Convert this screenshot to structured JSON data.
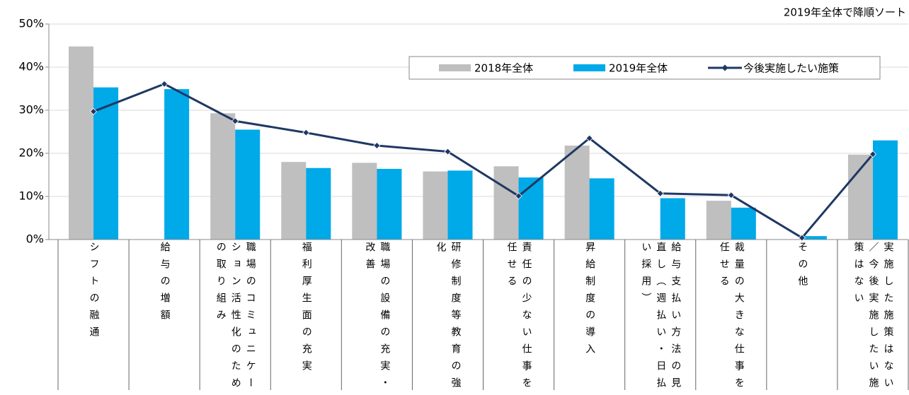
{
  "chart_data": {
    "type": "bar",
    "annotation": "2019年全体で降順ソート",
    "categories": [
      "シフトの融通",
      "給与の増額",
      "職場のコミュニケーション活性化のための取り組み",
      "福利厚生面の充実",
      "職場の設備の充実・改善",
      "研修制度等教育の強化",
      "責任の少ない仕事を任せる",
      "昇給制度の導入",
      "給与支払い方法の見直し（週払い・日払い採用）",
      "裁量の大きな仕事を任せる",
      "その他",
      "実施した施策はない／今後実施したい施策はない"
    ],
    "series": [
      {
        "name": "2018年全体",
        "type": "bar",
        "color": "#bfbfbf",
        "values": [
          44.8,
          null,
          29.3,
          18.0,
          17.8,
          15.8,
          17.0,
          21.8,
          null,
          9.0,
          null,
          19.7
        ]
      },
      {
        "name": "2019年全体",
        "type": "bar",
        "color": "#00a9e8",
        "values": [
          35.3,
          34.9,
          25.5,
          16.6,
          16.4,
          16.0,
          14.4,
          14.2,
          9.6,
          7.4,
          0.8,
          23.0
        ]
      },
      {
        "name": "今後実施したい施策",
        "type": "line",
        "color": "#1f3864",
        "values": [
          29.7,
          36.1,
          27.5,
          24.8,
          21.8,
          20.4,
          10.1,
          23.5,
          10.7,
          10.3,
          0.4,
          19.8
        ]
      }
    ],
    "ylim": [
      0,
      50
    ],
    "yticks": [
      {
        "value": 0,
        "label": "0%"
      },
      {
        "value": 10,
        "label": "10%"
      },
      {
        "value": 20,
        "label": "20%"
      },
      {
        "value": 30,
        "label": "30%"
      },
      {
        "value": 40,
        "label": "40%"
      },
      {
        "value": 50,
        "label": "50%"
      }
    ],
    "grid": true
  }
}
